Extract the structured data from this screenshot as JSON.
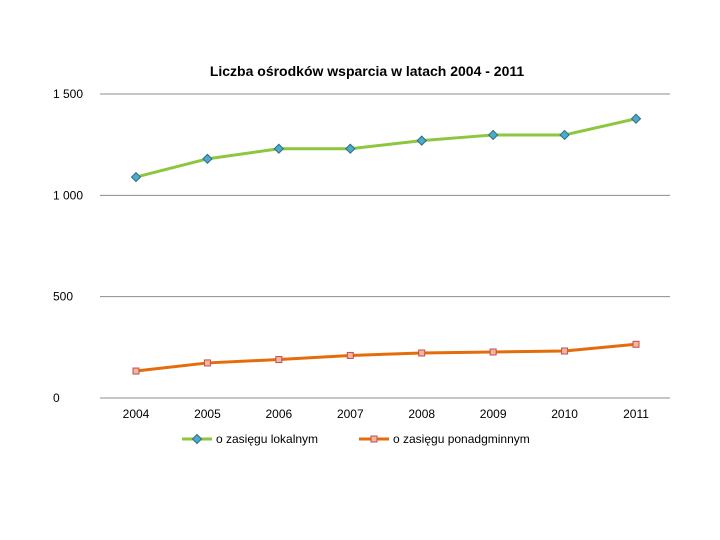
{
  "chart_data": {
    "type": "line",
    "title": "Liczba ośrodków wsparcia w latach 2004 - 2011",
    "xlabel": "",
    "ylabel": "",
    "x": [
      "2004",
      "2005",
      "2006",
      "2007",
      "2008",
      "2009",
      "2010",
      "2011"
    ],
    "ylim": [
      0,
      1500
    ],
    "yticks": [
      0,
      500,
      1000,
      1500
    ],
    "ytick_labels": [
      "0",
      "500",
      "1 000",
      "1 500"
    ],
    "grid": true,
    "legend": "bottom",
    "series": [
      {
        "name": "o zasięgu lokalnym",
        "values": [
          1090,
          1180,
          1230,
          1230,
          1270,
          1298,
          1298,
          1378
        ],
        "color": "#8dc63f",
        "marker": "diamond",
        "marker_fill": "#4bacc6",
        "marker_stroke": "#2e6b8a"
      },
      {
        "name": "o zasięgu ponadgminnym",
        "values": [
          133,
          173,
          190,
          210,
          222,
          227,
          232,
          265
        ],
        "color": "#e46c0a",
        "marker": "square",
        "marker_fill": "#f2b6a0",
        "marker_stroke": "#c0504d"
      }
    ]
  }
}
